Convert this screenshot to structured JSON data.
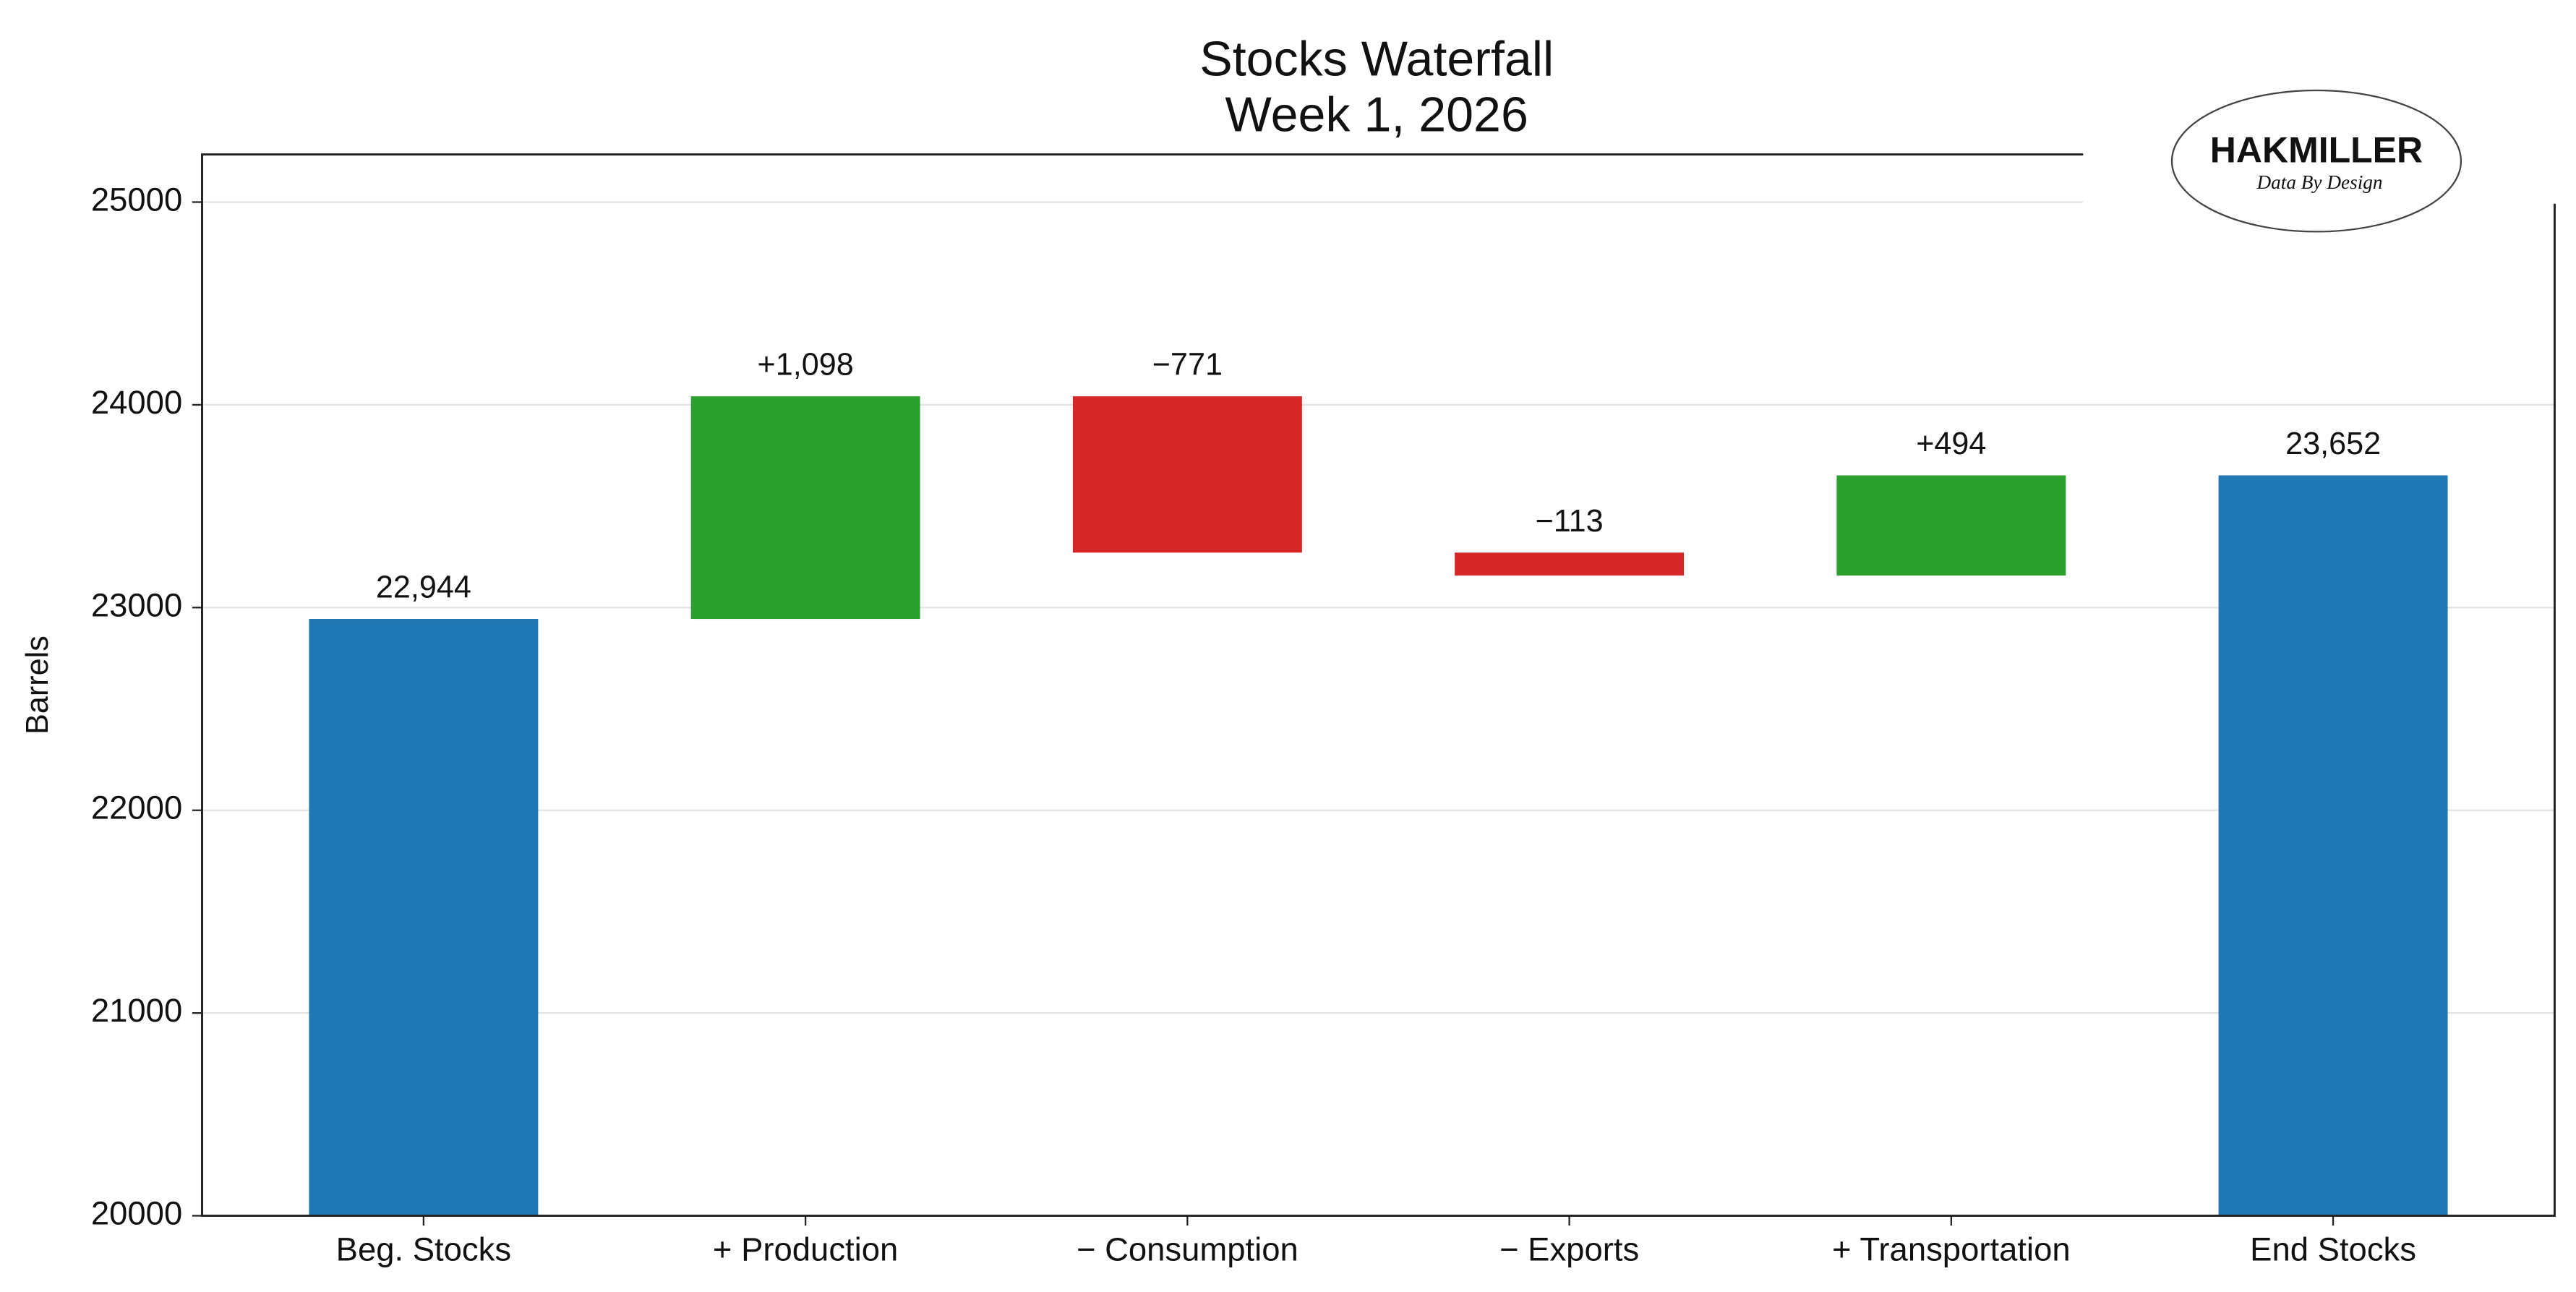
{
  "chart_data": {
    "type": "waterfall",
    "title": "Stocks Waterfall",
    "subtitle": "Week 1, 2026",
    "y_label": "Barrels",
    "categories": [
      "Beg. Stocks",
      "+ Production",
      "− Consumption",
      "− Exports",
      "+ Transportation",
      "End Stocks"
    ],
    "measure": [
      "absolute",
      "relative",
      "relative",
      "relative",
      "relative",
      "total"
    ],
    "values": [
      22944,
      1098,
      -771,
      -113,
      494,
      23652
    ],
    "value_labels": [
      "22,944",
      "+1,098",
      "−771",
      "−113",
      "+494",
      "23,652"
    ],
    "colors": {
      "total": "#1f77b4",
      "increase": "#2ca02c",
      "decrease": "#d62728"
    },
    "ylim": [
      20000,
      25235
    ],
    "yticks": [
      20000,
      21000,
      22000,
      23000,
      24000,
      25000
    ],
    "grid": true,
    "logo": {
      "name": "HAKMILLER",
      "tagline": "Data By Design"
    }
  }
}
